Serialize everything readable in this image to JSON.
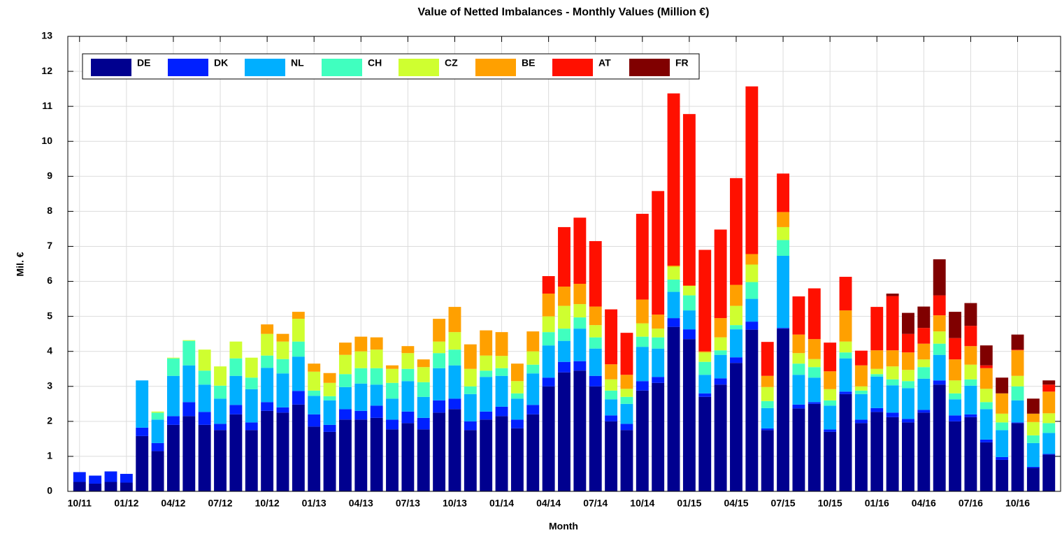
{
  "chart_data": {
    "type": "stacked_bar",
    "title": "Value of Netted Imbalances - Monthly Values (Million €)",
    "x_label": "Month",
    "y_label": "Mil. €",
    "categories": [
      "10/11",
      null,
      null,
      "01/12",
      null,
      null,
      "04/12",
      null,
      null,
      "07/12",
      null,
      null,
      "10/12",
      null,
      null,
      "01/13",
      null,
      null,
      "04/13",
      null,
      null,
      "07/13",
      null,
      null,
      "10/13",
      null,
      null,
      "01/14",
      null,
      null,
      "04/14",
      null,
      null,
      "07/14",
      null,
      null,
      "10/14",
      null,
      null,
      "01/15",
      null,
      null,
      "04/15",
      null,
      null,
      "07/15",
      null,
      null,
      "10/15",
      null,
      null,
      "01/16",
      null,
      null,
      "04/16",
      null,
      null,
      "07/16",
      null,
      null,
      "10/16",
      null,
      null
    ],
    "ylim": [
      0,
      13
    ],
    "yticks": [
      0,
      1,
      2,
      3,
      4,
      5,
      6,
      7,
      8,
      9,
      10,
      11,
      12,
      13
    ],
    "grid": true,
    "legend": "top-left",
    "series": [
      {
        "name": "DE",
        "color": "#00008f",
        "values": [
          0.27,
          0.22,
          0.27,
          0.25,
          1.58,
          1.15,
          1.9,
          2.15,
          1.9,
          1.75,
          2.2,
          1.75,
          2.3,
          2.25,
          2.48,
          1.85,
          1.7,
          2.05,
          2.05,
          2.1,
          1.77,
          1.95,
          1.77,
          2.25,
          2.35,
          1.75,
          2.05,
          2.15,
          1.8,
          2.2,
          3.0,
          3.4,
          3.45,
          3.0,
          2.0,
          1.75,
          2.88,
          3.1,
          4.7,
          4.35,
          2.7,
          3.05,
          3.67,
          4.62,
          1.75,
          4.65,
          2.37,
          2.5,
          1.7,
          2.78,
          1.95,
          2.27,
          2.12,
          1.97,
          2.25,
          3.05,
          2.0,
          2.12,
          1.4,
          0.9,
          1.95,
          0.67,
          1.05
        ]
      },
      {
        "name": "DK",
        "color": "#0020ff",
        "values": [
          0.28,
          0.23,
          0.3,
          0.25,
          0.24,
          0.23,
          0.25,
          0.4,
          0.37,
          0.18,
          0.27,
          0.22,
          0.25,
          0.15,
          0.39,
          0.35,
          0.2,
          0.3,
          0.25,
          0.35,
          0.28,
          0.33,
          0.33,
          0.35,
          0.3,
          0.25,
          0.23,
          0.27,
          0.25,
          0.27,
          0.25,
          0.3,
          0.27,
          0.3,
          0.17,
          0.18,
          0.27,
          0.17,
          0.25,
          0.28,
          0.1,
          0.18,
          0.16,
          0.23,
          0.05,
          0.02,
          0.11,
          0.05,
          0.07,
          0.07,
          0.1,
          0.11,
          0.13,
          0.1,
          0.08,
          0.12,
          0.17,
          0.08,
          0.08,
          0.08,
          0.02,
          0.03,
          0.02
        ]
      },
      {
        "name": "NL",
        "color": "#00afff",
        "values": [
          0,
          0,
          0,
          0,
          1.35,
          0.67,
          1.15,
          1.05,
          0.78,
          0.72,
          0.83,
          0.95,
          0.98,
          0.97,
          0.98,
          0.53,
          0.7,
          0.63,
          0.78,
          0.6,
          0.6,
          0.87,
          0.6,
          0.92,
          0.95,
          0.78,
          0.99,
          0.88,
          0.6,
          0.9,
          0.92,
          0.6,
          0.93,
          0.78,
          0.46,
          0.57,
          0.98,
          0.81,
          0.75,
          0.54,
          0.53,
          0.67,
          0.8,
          0.65,
          0.58,
          2.06,
          0.85,
          0.7,
          0.68,
          0.95,
          0.73,
          0.9,
          0.78,
          0.88,
          0.89,
          0.73,
          0.46,
          0.82,
          0.87,
          0.77,
          0.63,
          0.68,
          0.6
        ]
      },
      {
        "name": "CH",
        "color": "#40ffbf",
        "values": [
          0,
          0,
          0,
          0,
          0,
          0.2,
          0.5,
          0.7,
          0.4,
          0.37,
          0.5,
          0.33,
          0.35,
          0.41,
          0.43,
          0.15,
          0.12,
          0.37,
          0.44,
          0.47,
          0.45,
          0.35,
          0.42,
          0.43,
          0.45,
          0.22,
          0.18,
          0.22,
          0.15,
          0.25,
          0.38,
          0.35,
          0.32,
          0.32,
          0.25,
          0.2,
          0.29,
          0.32,
          0.35,
          0.43,
          0.37,
          0.13,
          0.12,
          0.48,
          0.2,
          0.45,
          0.32,
          0.3,
          0.15,
          0.17,
          0.1,
          0.07,
          0.17,
          0.2,
          0.33,
          0.32,
          0.17,
          0.18,
          0.2,
          0.22,
          0.4,
          0.22,
          0.28
        ]
      },
      {
        "name": "CZ",
        "color": "#cfff30",
        "values": [
          0,
          0,
          0,
          0,
          0,
          0.03,
          0.02,
          0.02,
          0.6,
          0.55,
          0.48,
          0.57,
          0.62,
          0.5,
          0.65,
          0.54,
          0.38,
          0.55,
          0.48,
          0.53,
          0.4,
          0.45,
          0.43,
          0.33,
          0.5,
          0.5,
          0.43,
          0.35,
          0.35,
          0.38,
          0.45,
          0.65,
          0.38,
          0.35,
          0.32,
          0.23,
          0.38,
          0.25,
          0.37,
          0.27,
          0.27,
          0.37,
          0.55,
          0.5,
          0.4,
          0.37,
          0.3,
          0.23,
          0.32,
          0.31,
          0.12,
          0.15,
          0.37,
          0.32,
          0.22,
          0.35,
          0.37,
          0.42,
          0.38,
          0.25,
          0.3,
          0.38,
          0.28
        ]
      },
      {
        "name": "BE",
        "color": "#ffa000",
        "values": [
          0,
          0,
          0,
          0,
          0,
          0,
          0,
          0,
          0,
          0,
          0,
          0,
          0.27,
          0.22,
          0.2,
          0.23,
          0.28,
          0.35,
          0.42,
          0.35,
          0.1,
          0.2,
          0.22,
          0.65,
          0.72,
          0.7,
          0.72,
          0.68,
          0.5,
          0.57,
          0.65,
          0.55,
          0.58,
          0.53,
          0.43,
          0.4,
          0.68,
          0.4,
          0.03,
          0.01,
          0.03,
          0.55,
          0.6,
          0.3,
          0.32,
          0.43,
          0.53,
          0.57,
          0.51,
          0.89,
          0.6,
          0.53,
          0.46,
          0.5,
          0.45,
          0.46,
          0.6,
          0.53,
          0.59,
          0.58,
          0.73,
          0.24,
          0.62
        ]
      },
      {
        "name": "AT",
        "color": "#ff1000",
        "values": [
          0,
          0,
          0,
          0,
          0,
          0,
          0,
          0,
          0,
          0,
          0,
          0,
          0,
          0,
          0,
          0,
          0,
          0,
          0,
          0,
          0,
          0,
          0,
          0,
          0,
          0,
          0,
          0,
          0,
          0,
          0.5,
          1.7,
          1.89,
          1.87,
          1.57,
          1.2,
          2.45,
          3.53,
          4.92,
          4.9,
          2.9,
          2.53,
          3.05,
          4.79,
          0.97,
          1.1,
          1.09,
          1.45,
          0.82,
          0.96,
          0.42,
          1.24,
          1.55,
          0.53,
          0.45,
          0.57,
          0.61,
          0.58,
          0.08,
          0,
          0.02,
          0,
          0.2
        ]
      },
      {
        "name": "FR",
        "color": "#800000",
        "values": [
          0,
          0,
          0,
          0,
          0,
          0,
          0,
          0,
          0,
          0,
          0,
          0,
          0,
          0,
          0,
          0,
          0,
          0,
          0,
          0,
          0,
          0,
          0,
          0,
          0,
          0,
          0,
          0,
          0,
          0,
          0,
          0,
          0,
          0,
          0,
          0,
          0,
          0,
          0,
          0,
          0,
          0,
          0,
          0,
          0,
          0,
          0,
          0,
          0,
          0,
          0,
          0,
          0.07,
          0.6,
          0.61,
          1.03,
          0.75,
          0.65,
          0.57,
          0.45,
          0.43,
          0.43,
          0.12
        ]
      }
    ]
  }
}
